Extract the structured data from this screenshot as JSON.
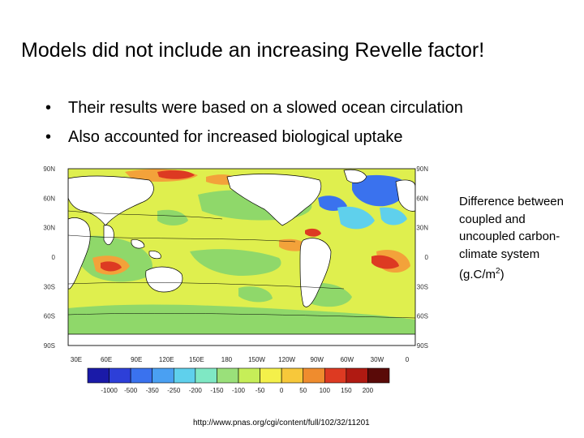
{
  "slide": {
    "title": "Models did not include an increasing Revelle factor!",
    "bullets": [
      "Their results were based on a slowed ocean circulation",
      "Also accounted for increased biological uptake"
    ]
  },
  "caption": {
    "text": "Difference between coupled and uncoupled carbon-climate system (g.C/m",
    "superscript": "2",
    "closing": ")"
  },
  "map": {
    "lat_labels": [
      "90N",
      "60N",
      "30N",
      "0",
      "30S",
      "60S",
      "90S"
    ],
    "lon_labels": [
      "30E",
      "60E",
      "90E",
      "120E",
      "150E",
      "180",
      "150W",
      "120W",
      "90W",
      "60W",
      "30W",
      "0"
    ],
    "colorbar": {
      "ticks": [
        "-1000",
        "-500",
        "-350",
        "-250",
        "-200",
        "-150",
        "-100",
        "-50",
        "0",
        "50",
        "100",
        "150",
        "200"
      ],
      "colors": [
        "#1a1aa8",
        "#2d3fd8",
        "#3a72ee",
        "#4aa0f2",
        "#5fd0ec",
        "#7fe8c4",
        "#9ae07a",
        "#c6ee58",
        "#f4f04a",
        "#f7c83a",
        "#ef8c2e",
        "#dd3a22",
        "#b01a12",
        "#5a0a08"
      ]
    },
    "palette": {
      "ocean_base": "#dfef4e",
      "land": "#ffffff",
      "green": "#8fd86a",
      "orange": "#f3a23a",
      "red": "#dd3a22",
      "blue": "#3a72ee",
      "cyan": "#5fd0ec"
    }
  },
  "source": {
    "url": "http://www.pnas.org/cgi/content/full/102/32/11201"
  }
}
